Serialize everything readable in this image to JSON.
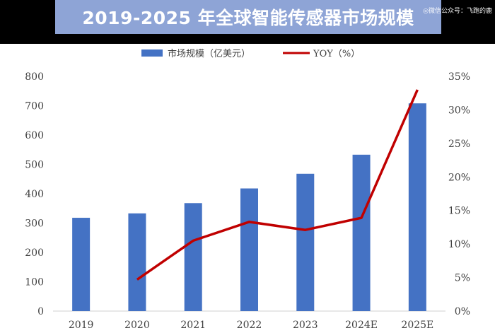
{
  "title": "2019-2025 年全球智能传感器市场规模",
  "watermark": "◎微信公众号：飞跑的鹿",
  "colors": {
    "bar": "#4472c4",
    "line": "#c00000",
    "banner": "#8ea4d6"
  },
  "chart_data": {
    "type": "bar",
    "categories": [
      "2019",
      "2020",
      "2021",
      "2022",
      "2023",
      "2024E",
      "2025E"
    ],
    "series": [
      {
        "name": "市场规模（亿美元）",
        "type": "bar",
        "axis": "left",
        "values": [
          318,
          333,
          368,
          418,
          468,
          533,
          708
        ]
      },
      {
        "name": "YOY（%）",
        "type": "line",
        "axis": "right",
        "values": [
          null,
          4.7,
          10.5,
          13.3,
          12.1,
          13.9,
          33.0
        ]
      }
    ],
    "y_left": {
      "ylim": [
        0,
        800
      ],
      "ticks": [
        "0",
        "100",
        "200",
        "300",
        "400",
        "500",
        "600",
        "700",
        "800"
      ]
    },
    "y_right": {
      "ylim": [
        0,
        35
      ],
      "ticks": [
        "0%",
        "5%",
        "10%",
        "15%",
        "20%",
        "25%",
        "30%",
        "35%"
      ]
    },
    "legend_position": "top",
    "grid": false
  }
}
